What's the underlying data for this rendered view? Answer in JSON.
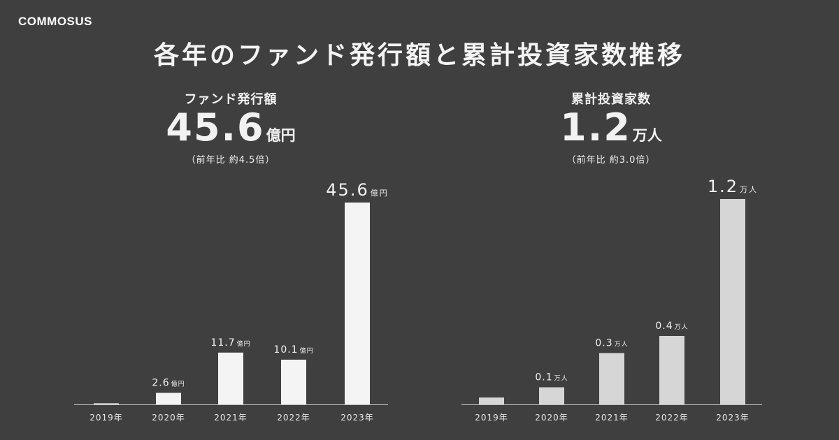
{
  "logo_text": "COMMOSUS",
  "title": "各年のファンド発行額と累計投資家数推移",
  "summaries": {
    "left": {
      "label": "ファンド発行額",
      "value": "45.6",
      "unit": "億円",
      "note": "（前年比 約4.5倍）"
    },
    "right": {
      "label": "累計投資家数",
      "value": "1.2",
      "unit": "万人",
      "note": "（前年比 約3.0倍）"
    }
  },
  "colors": {
    "background": "#3f3f3f",
    "bar_left": "#f4f4f4",
    "bar_right": "#d6d6d6",
    "axis": "#bdbdbd",
    "text": "#f2f2f2"
  },
  "chart_data": [
    {
      "type": "bar",
      "title": "",
      "xlabel": "",
      "ylabel": "",
      "categories": [
        "2019年",
        "2020年",
        "2021年",
        "2022年",
        "2023年"
      ],
      "values": [
        0.1,
        2.6,
        11.7,
        10.1,
        45.6
      ],
      "data_labels": [
        "",
        "2.6",
        "11.7",
        "10.1",
        "45.6"
      ],
      "label_unit": "億円",
      "ylim": [
        0,
        45.6
      ],
      "grid": false
    },
    {
      "type": "bar",
      "title": "",
      "xlabel": "",
      "ylabel": "",
      "categories": [
        "2019年",
        "2020年",
        "2021年",
        "2022年",
        "2023年"
      ],
      "values": [
        0.04,
        0.1,
        0.3,
        0.4,
        1.2
      ],
      "data_labels": [
        "",
        "0.1",
        "0.3",
        "0.4",
        "1.2"
      ],
      "label_unit": "万人",
      "ylim": [
        0,
        1.2
      ],
      "grid": false
    }
  ]
}
